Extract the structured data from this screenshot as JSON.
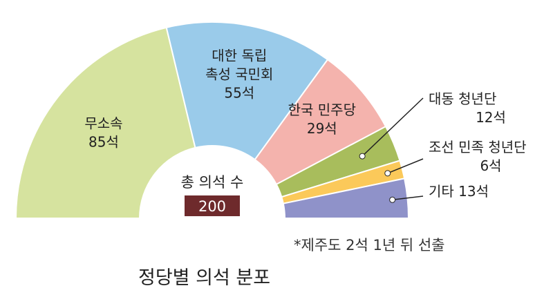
{
  "chart_data": {
    "type": "pie",
    "shape": "semicircle",
    "title": "정당별 의석 분포",
    "center": {
      "label": "총 의석 수",
      "value": "200"
    },
    "footnote": "*제주도 2석 1년 뒤 선출",
    "slices": [
      {
        "name": "무소속",
        "value": 85,
        "value_label": "85석",
        "color": "#d6e39f",
        "label_lines": [
          "무소속",
          "85석"
        ],
        "label_placement": "inside"
      },
      {
        "name": "대한 독립 촉성 국민회",
        "value": 55,
        "value_label": "55석",
        "color": "#9acbea",
        "label_lines": [
          "대한 독립",
          "촉성 국민회",
          "55석"
        ],
        "label_placement": "inside"
      },
      {
        "name": "한국 민주당",
        "value": 29,
        "value_label": "29석",
        "color": "#f4b3ad",
        "label_lines": [
          "한국 민주당",
          "29석"
        ],
        "label_placement": "inside"
      },
      {
        "name": "대동 청년단",
        "value": 12,
        "value_label": "12석",
        "color": "#a8bd5c",
        "label_lines": [
          "대동 청년단",
          "12석"
        ],
        "label_placement": "outside"
      },
      {
        "name": "조선 민족 청년단",
        "value": 6,
        "value_label": "6석",
        "color": "#fbc95a",
        "label_lines": [
          "조선 민족 청년단",
          "6석"
        ],
        "label_placement": "outside"
      },
      {
        "name": "기타",
        "value": 13,
        "value_label": "13석",
        "color": "#8f92c9",
        "label_lines": [
          "기타 13석"
        ],
        "label_placement": "outside"
      }
    ]
  }
}
